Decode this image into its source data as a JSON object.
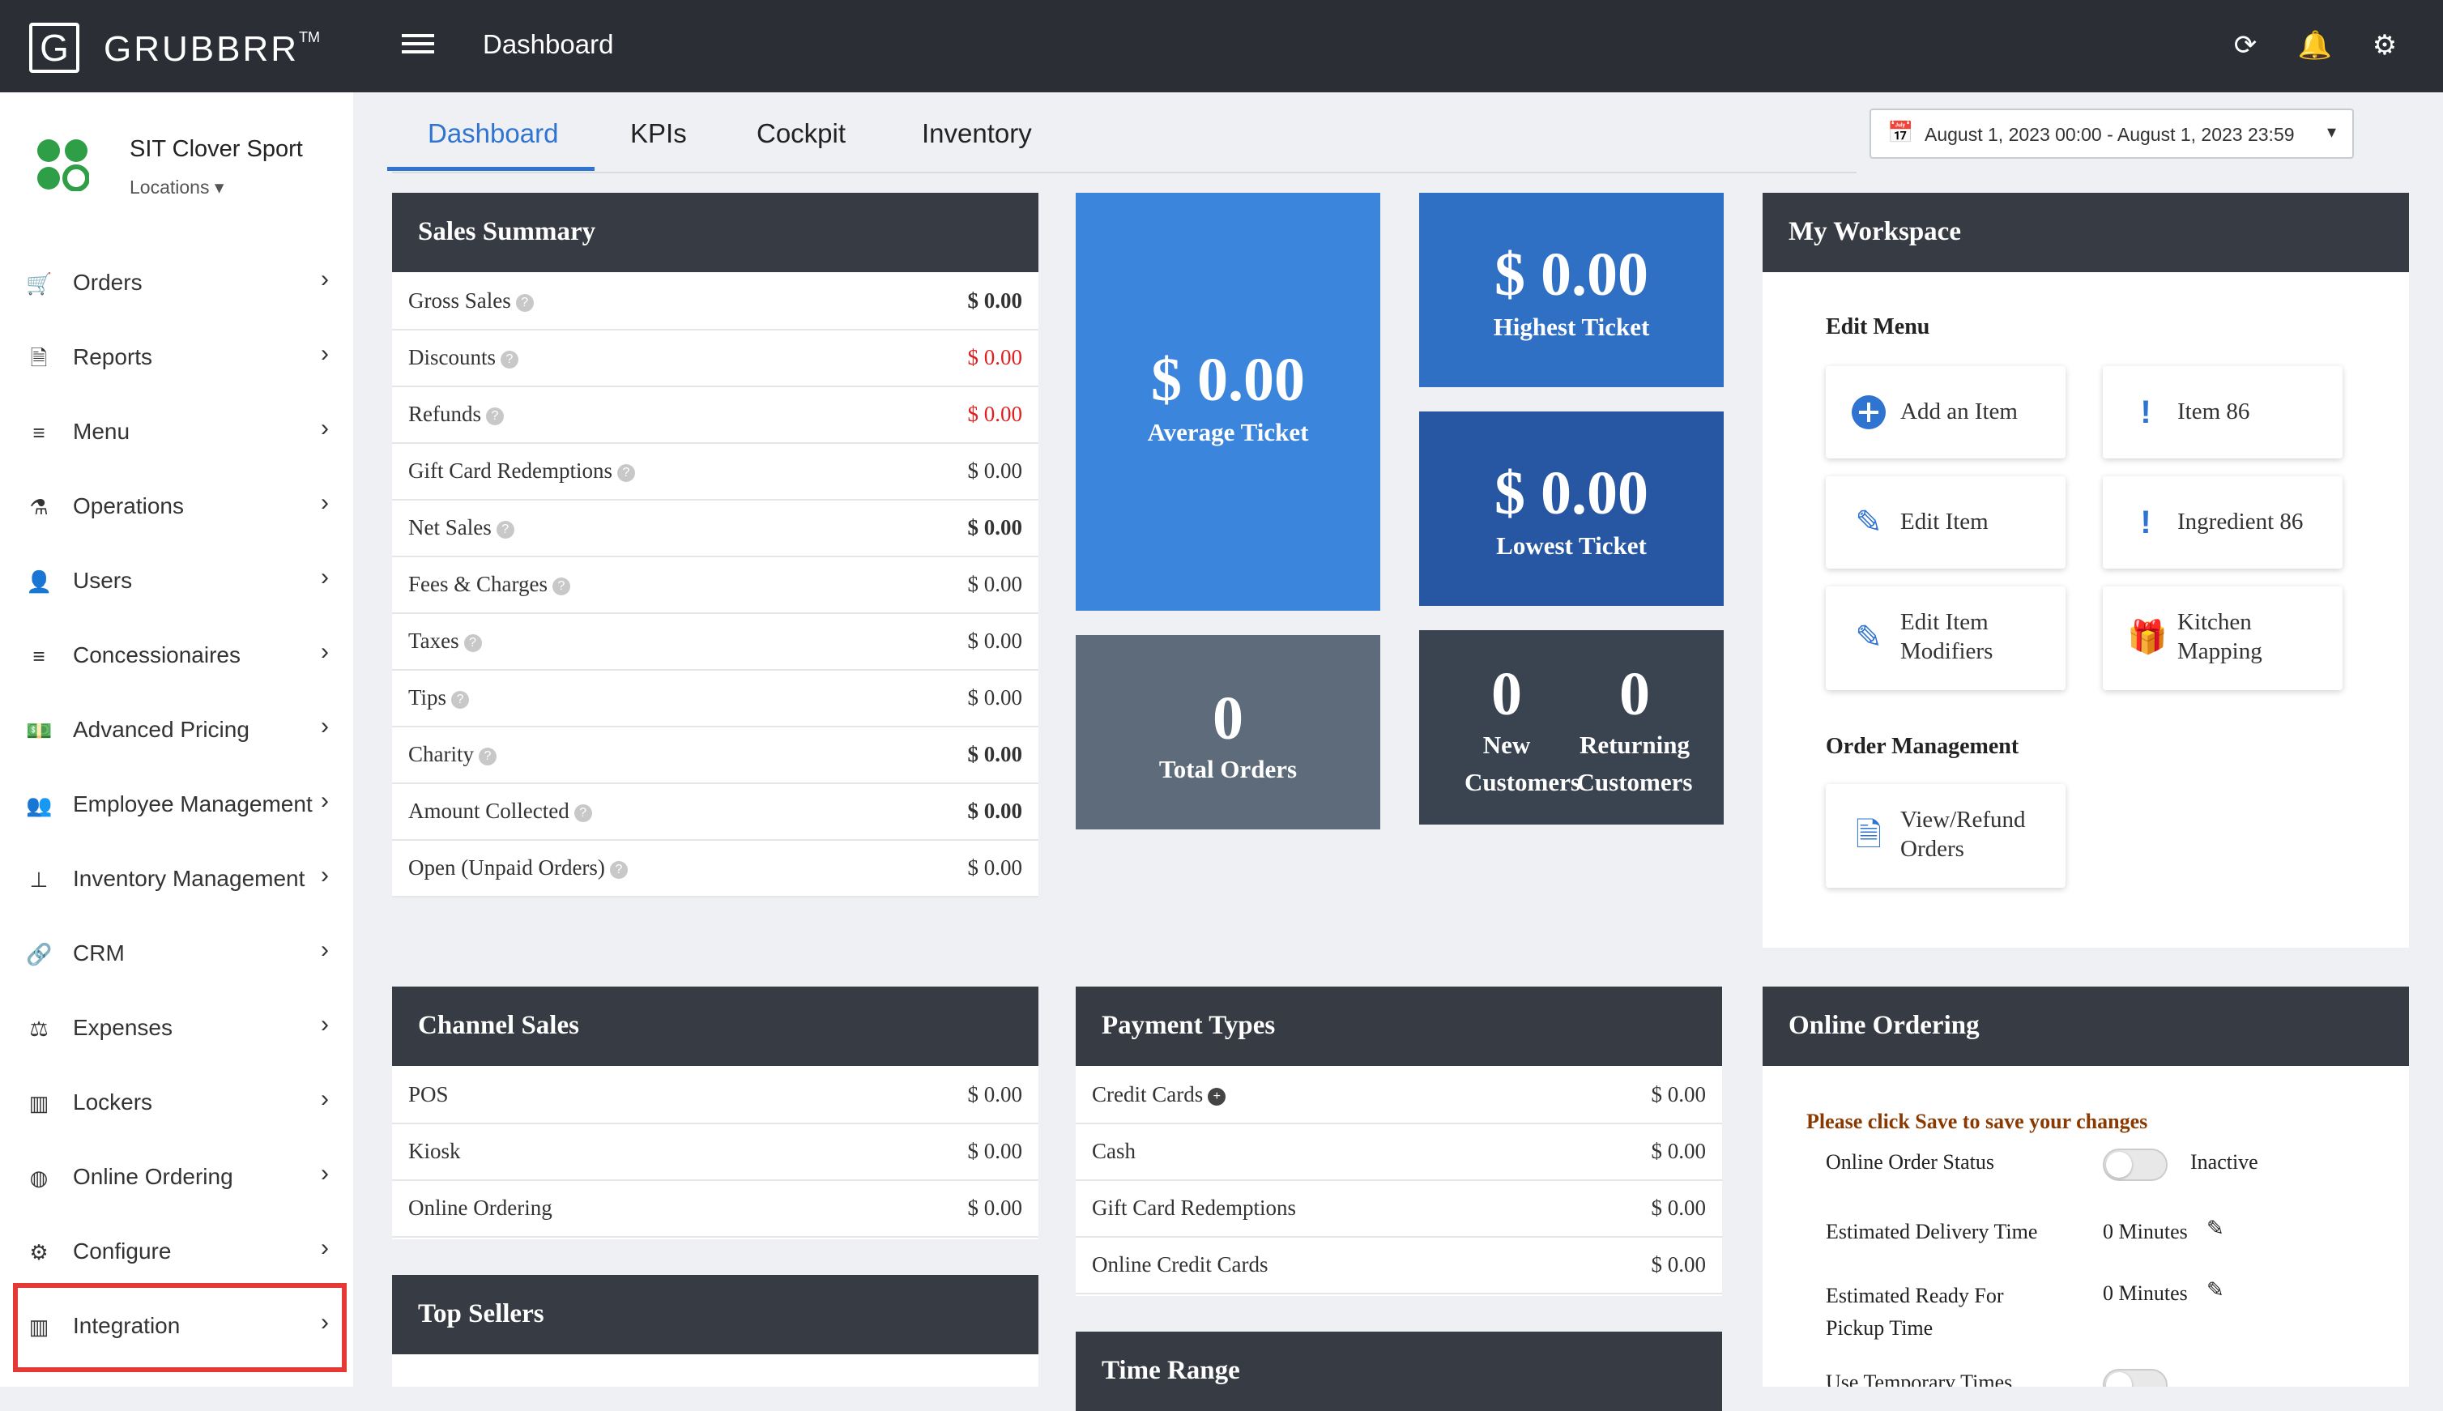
{
  "brand": {
    "name": "GRUBBRR",
    "tm": "TM",
    "letter": "G"
  },
  "store": {
    "name": "SIT Clover Sport",
    "locations_label": "Locations"
  },
  "sidebar": {
    "items": [
      {
        "label": "Orders",
        "icon": "cart-icon"
      },
      {
        "label": "Reports",
        "icon": "document-icon"
      },
      {
        "label": "Menu",
        "icon": "list-icon"
      },
      {
        "label": "Operations",
        "icon": "flask-icon"
      },
      {
        "label": "Users",
        "icon": "user-add-icon"
      },
      {
        "label": "Concessionaires",
        "icon": "list-icon"
      },
      {
        "label": "Advanced Pricing",
        "icon": "money-icon"
      },
      {
        "label": "Employee Management",
        "icon": "users-icon"
      },
      {
        "label": "Inventory Management",
        "icon": "sitemap-icon"
      },
      {
        "label": "CRM",
        "icon": "link-icon"
      },
      {
        "label": "Expenses",
        "icon": "scale-icon"
      },
      {
        "label": "Lockers",
        "icon": "lockers-icon"
      },
      {
        "label": "Online Ordering",
        "icon": "globe-icon"
      },
      {
        "label": "Configure",
        "icon": "gear-icon"
      },
      {
        "label": "Integration",
        "icon": "integration-icon"
      }
    ]
  },
  "header": {
    "title": "Dashboard"
  },
  "tabs": [
    {
      "label": "Dashboard",
      "active": true
    },
    {
      "label": "KPIs",
      "active": false
    },
    {
      "label": "Cockpit",
      "active": false
    },
    {
      "label": "Inventory",
      "active": false
    }
  ],
  "date_range": "August 1, 2023 00:00 - August 1, 2023 23:59",
  "sales_summary": {
    "title": "Sales Summary",
    "rows": [
      {
        "label": "Gross Sales",
        "value": "$ 0.00",
        "bold": true,
        "red": false
      },
      {
        "label": "Discounts",
        "value": "$ 0.00",
        "bold": false,
        "red": true
      },
      {
        "label": "Refunds",
        "value": "$ 0.00",
        "bold": false,
        "red": true
      },
      {
        "label": "Gift Card Redemptions",
        "value": "$ 0.00",
        "bold": false,
        "red": false
      },
      {
        "label": "Net Sales",
        "value": "$ 0.00",
        "bold": true,
        "red": false
      },
      {
        "label": "Fees & Charges",
        "value": "$ 0.00",
        "bold": false,
        "red": false
      },
      {
        "label": "Taxes",
        "value": "$ 0.00",
        "bold": false,
        "red": false
      },
      {
        "label": "Tips",
        "value": "$ 0.00",
        "bold": false,
        "red": false
      },
      {
        "label": "Charity",
        "value": "$ 0.00",
        "bold": true,
        "red": false
      },
      {
        "label": "Amount Collected",
        "value": "$ 0.00",
        "bold": true,
        "red": false
      },
      {
        "label": "Open (Unpaid Orders)",
        "value": "$ 0.00",
        "bold": false,
        "red": false
      }
    ]
  },
  "kpi": {
    "average_ticket": {
      "value": "$ 0.00",
      "label": "Average Ticket"
    },
    "highest_ticket": {
      "value": "$ 0.00",
      "label": "Highest Ticket"
    },
    "lowest_ticket": {
      "value": "$ 0.00",
      "label": "Lowest Ticket"
    },
    "total_orders": {
      "value": "0",
      "label": "Total Orders"
    },
    "new_customers": {
      "value": "0",
      "label1": "New",
      "label2": "Customers"
    },
    "returning_customers": {
      "value": "0",
      "label1": "Returning",
      "label2": "Customers"
    }
  },
  "workspace": {
    "title": "My Workspace",
    "edit_menu_label": "Edit Menu",
    "order_mgmt_label": "Order Management",
    "cards": {
      "add_item": "Add an Item",
      "item86": "Item 86",
      "edit_item": "Edit Item",
      "ingredient86": "Ingredient 86",
      "edit_modifiers_1": "Edit Item",
      "edit_modifiers_2": "Modifiers",
      "kitchen_1": "Kitchen",
      "kitchen_2": "Mapping",
      "view_refund_1": "View/Refund",
      "view_refund_2": "Orders"
    }
  },
  "channel_sales": {
    "title": "Channel Sales",
    "rows": [
      {
        "label": "POS",
        "value": "$ 0.00"
      },
      {
        "label": "Kiosk",
        "value": "$ 0.00"
      },
      {
        "label": "Online Ordering",
        "value": "$ 0.00"
      }
    ]
  },
  "payment_types": {
    "title": "Payment Types",
    "rows": [
      {
        "label": "Credit Cards",
        "value": "$ 0.00"
      },
      {
        "label": "Cash",
        "value": "$ 0.00"
      },
      {
        "label": "Gift Card Redemptions",
        "value": "$ 0.00"
      },
      {
        "label": "Online Credit Cards",
        "value": "$ 0.00"
      }
    ]
  },
  "top_sellers": {
    "title": "Top Sellers"
  },
  "time_range": {
    "title": "Time Range"
  },
  "online_ordering": {
    "title": "Online Ordering",
    "notice": "Please click Save to save your changes",
    "status_label": "Online Order Status",
    "status_value": "Inactive",
    "delivery_label": "Estimated Delivery Time",
    "delivery_value": "0 Minutes",
    "pickup_label_1": "Estimated Ready For",
    "pickup_label_2": "Pickup Time",
    "pickup_value": "0 Minutes",
    "temp_label": "Use Temporary Times"
  },
  "colors": {
    "accent": "#2f74d0",
    "tile_blue": "#3b85dc",
    "tile_mid": "#2f6fc4",
    "tile_dark": "#2757a3",
    "tile_gray": "#5e6b7a",
    "tile_slate": "#3a4350",
    "header_dark": "#2b2f35",
    "highlight": "#e53935",
    "notice": "#8a3a00"
  }
}
